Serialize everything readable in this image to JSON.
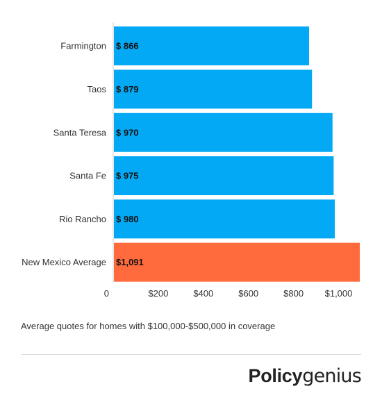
{
  "chart_data": {
    "type": "bar",
    "orientation": "horizontal",
    "categories": [
      "Farmington",
      "Taos",
      "Santa Teresa",
      "Santa Fe",
      "Rio Rancho",
      "New Mexico Average"
    ],
    "values": [
      866,
      879,
      970,
      975,
      980,
      1091
    ],
    "value_labels": [
      "$ 866",
      "$ 879",
      "$ 970",
      "$ 975",
      "$ 980",
      "$1,091"
    ],
    "bar_colors": [
      "#03A9F4",
      "#03A9F4",
      "#03A9F4",
      "#03A9F4",
      "#03A9F4",
      "#FF6B3D"
    ],
    "x_ticks": [
      0,
      200,
      400,
      600,
      800,
      1000
    ],
    "x_tick_labels": [
      "0",
      "$200",
      "$400",
      "$600",
      "$800",
      "$1,000"
    ],
    "xlim": [
      0,
      1150
    ],
    "grid": false,
    "legend": "none"
  },
  "caption": "Average quotes for homes with $100,000-$500,000 in coverage",
  "brand": {
    "part1": "Policy",
    "part2": "genius"
  }
}
